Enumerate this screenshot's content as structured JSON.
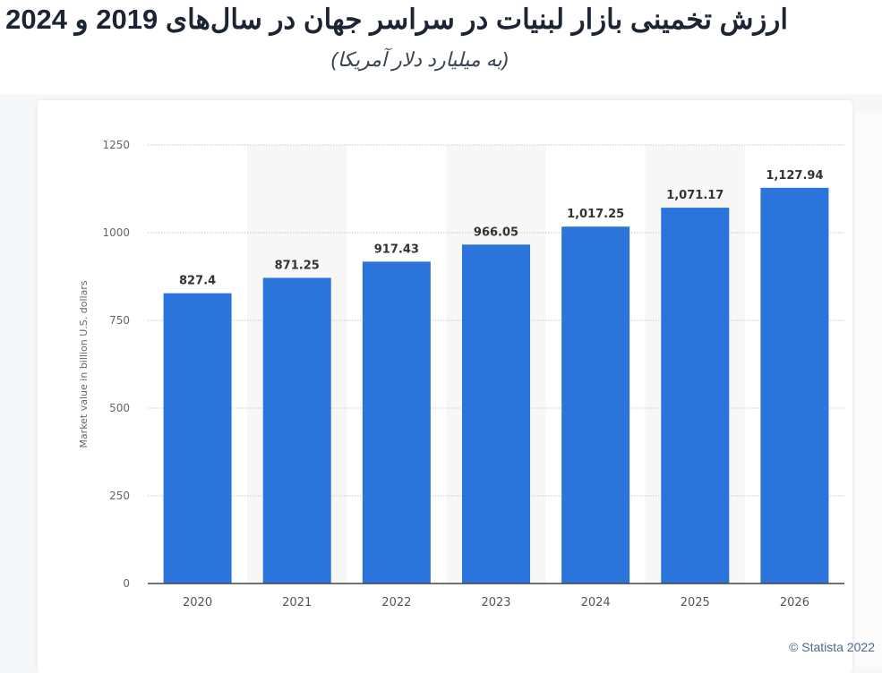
{
  "header": {
    "title": "ارزش تخمینی بازار لبنیات در سراسر جهان در سال‌های 2019 و 2024",
    "subtitle": "(به میلیارد دلار آمریکا)"
  },
  "credit": "© Statista 2022",
  "chart_data": {
    "type": "bar",
    "categories": [
      "2020",
      "2021",
      "2022",
      "2023",
      "2024",
      "2025",
      "2026"
    ],
    "values": [
      827.4,
      871.25,
      917.43,
      966.05,
      1017.25,
      1071.17,
      1127.94
    ],
    "value_labels": [
      "827.4",
      "871.25",
      "917.43",
      "966.05",
      "1,017.25",
      "1,071.17",
      "1,127.94"
    ],
    "ylabel": "Market value in billion U.S. dollars",
    "xlabel": "",
    "ylim": [
      0,
      1250
    ],
    "yticks": [
      0,
      250,
      500,
      750,
      1000,
      1250
    ],
    "grid": true,
    "bar_color": "#2a74dc",
    "band_color": "#f7f7f7"
  }
}
